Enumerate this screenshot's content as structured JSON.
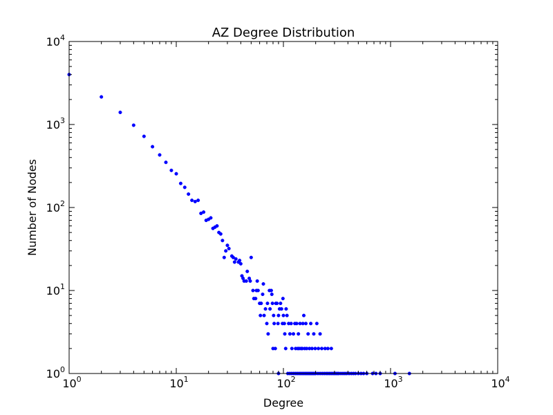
{
  "chart_data": {
    "type": "scatter",
    "title": "AZ Degree Distribution",
    "xlabel": "Degree",
    "ylabel": "Number of Nodes",
    "xscale": "log",
    "yscale": "log",
    "xlim": [
      1,
      10000
    ],
    "ylim": [
      1,
      10000
    ],
    "grid": false,
    "marker_color": "#0000ff",
    "x_ticks": [
      {
        "value": 1,
        "base": "10",
        "exp": "0"
      },
      {
        "value": 10,
        "base": "10",
        "exp": "1"
      },
      {
        "value": 100,
        "base": "10",
        "exp": "2"
      },
      {
        "value": 1000,
        "base": "10",
        "exp": "3"
      },
      {
        "value": 10000,
        "base": "10",
        "exp": "4"
      }
    ],
    "y_ticks": [
      {
        "value": 1,
        "base": "10",
        "exp": "0"
      },
      {
        "value": 10,
        "base": "10",
        "exp": "1"
      },
      {
        "value": 100,
        "base": "10",
        "exp": "2"
      },
      {
        "value": 1000,
        "base": "10",
        "exp": "3"
      },
      {
        "value": 10000,
        "base": "10",
        "exp": "4"
      }
    ],
    "points": [
      [
        1,
        4000
      ],
      [
        2,
        2150
      ],
      [
        3,
        1400
      ],
      [
        4,
        980
      ],
      [
        5,
        720
      ],
      [
        6,
        540
      ],
      [
        7,
        430
      ],
      [
        8,
        350
      ],
      [
        9,
        280
      ],
      [
        10,
        255
      ],
      [
        11,
        195
      ],
      [
        12,
        175
      ],
      [
        13,
        145
      ],
      [
        14,
        122
      ],
      [
        15,
        118
      ],
      [
        16,
        122
      ],
      [
        17,
        85
      ],
      [
        18,
        88
      ],
      [
        19,
        70
      ],
      [
        20,
        72
      ],
      [
        21,
        75
      ],
      [
        22,
        56
      ],
      [
        23,
        58
      ],
      [
        24,
        60
      ],
      [
        25,
        50
      ],
      [
        26,
        48
      ],
      [
        27,
        40
      ],
      [
        28,
        25
      ],
      [
        29,
        30
      ],
      [
        30,
        35
      ],
      [
        31,
        32
      ],
      [
        33,
        26
      ],
      [
        34,
        25
      ],
      [
        35,
        22
      ],
      [
        36,
        24
      ],
      [
        38,
        22
      ],
      [
        39,
        23
      ],
      [
        40,
        21
      ],
      [
        41,
        15
      ],
      [
        42,
        14
      ],
      [
        43,
        13
      ],
      [
        45,
        13
      ],
      [
        46,
        17
      ],
      [
        48,
        14
      ],
      [
        49,
        13
      ],
      [
        50,
        25
      ],
      [
        52,
        10
      ],
      [
        53,
        8
      ],
      [
        55,
        8
      ],
      [
        56,
        10
      ],
      [
        57,
        13
      ],
      [
        58,
        10
      ],
      [
        60,
        7
      ],
      [
        61,
        5
      ],
      [
        62,
        7
      ],
      [
        64,
        9
      ],
      [
        65,
        12
      ],
      [
        66,
        5
      ],
      [
        68,
        6
      ],
      [
        70,
        4
      ],
      [
        71,
        7
      ],
      [
        72,
        3
      ],
      [
        74,
        10
      ],
      [
        75,
        6
      ],
      [
        77,
        10
      ],
      [
        78,
        9
      ],
      [
        79,
        7
      ],
      [
        80,
        2
      ],
      [
        81,
        5
      ],
      [
        82,
        4
      ],
      [
        84,
        2
      ],
      [
        85,
        7
      ],
      [
        87,
        7
      ],
      [
        89,
        4
      ],
      [
        90,
        5
      ],
      [
        92,
        6
      ],
      [
        94,
        7
      ],
      [
        96,
        6
      ],
      [
        98,
        4
      ],
      [
        99,
        8
      ],
      [
        100,
        5
      ],
      [
        102,
        4
      ],
      [
        103,
        3
      ],
      [
        105,
        2
      ],
      [
        106,
        6
      ],
      [
        108,
        5
      ],
      [
        112,
        4
      ],
      [
        115,
        3
      ],
      [
        118,
        4
      ],
      [
        120,
        2
      ],
      [
        124,
        3
      ],
      [
        128,
        4
      ],
      [
        130,
        2
      ],
      [
        133,
        4
      ],
      [
        136,
        2
      ],
      [
        138,
        3
      ],
      [
        140,
        2
      ],
      [
        143,
        4
      ],
      [
        146,
        2
      ],
      [
        150,
        2
      ],
      [
        152,
        4
      ],
      [
        155,
        5
      ],
      [
        158,
        2
      ],
      [
        162,
        4
      ],
      [
        165,
        2
      ],
      [
        170,
        3
      ],
      [
        175,
        2
      ],
      [
        180,
        4
      ],
      [
        185,
        2
      ],
      [
        192,
        3
      ],
      [
        198,
        2
      ],
      [
        205,
        4
      ],
      [
        212,
        2
      ],
      [
        220,
        3
      ],
      [
        228,
        2
      ],
      [
        245,
        2
      ],
      [
        260,
        2
      ],
      [
        280,
        2
      ],
      [
        90,
        1
      ],
      [
        110,
        1
      ],
      [
        115,
        1
      ],
      [
        120,
        1
      ],
      [
        125,
        1
      ],
      [
        130,
        1
      ],
      [
        135,
        1
      ],
      [
        140,
        1
      ],
      [
        145,
        1
      ],
      [
        150,
        1
      ],
      [
        155,
        1
      ],
      [
        160,
        1
      ],
      [
        165,
        1
      ],
      [
        170,
        1
      ],
      [
        175,
        1
      ],
      [
        180,
        1
      ],
      [
        185,
        1
      ],
      [
        190,
        1
      ],
      [
        195,
        1
      ],
      [
        200,
        1
      ],
      [
        210,
        1
      ],
      [
        220,
        1
      ],
      [
        230,
        1
      ],
      [
        240,
        1
      ],
      [
        250,
        1
      ],
      [
        260,
        1
      ],
      [
        270,
        1
      ],
      [
        280,
        1
      ],
      [
        290,
        1
      ],
      [
        300,
        1
      ],
      [
        310,
        1
      ],
      [
        320,
        1
      ],
      [
        330,
        1
      ],
      [
        345,
        1
      ],
      [
        360,
        1
      ],
      [
        375,
        1
      ],
      [
        390,
        1
      ],
      [
        410,
        1
      ],
      [
        430,
        1
      ],
      [
        450,
        1
      ],
      [
        470,
        1
      ],
      [
        500,
        1
      ],
      [
        530,
        1
      ],
      [
        560,
        1
      ],
      [
        600,
        1
      ],
      [
        680,
        1
      ],
      [
        730,
        1
      ],
      [
        800,
        1
      ],
      [
        1100,
        1
      ],
      [
        1500,
        1
      ]
    ]
  }
}
